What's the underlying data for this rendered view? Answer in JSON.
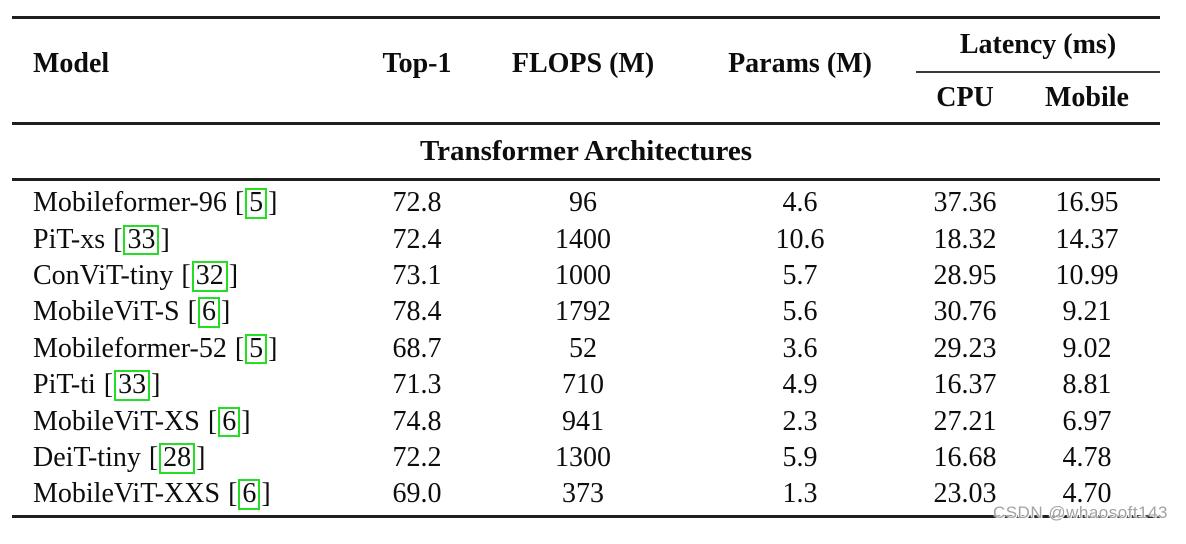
{
  "page": {
    "background": "#ffffff",
    "watermark": "CSDN @whaosoft143",
    "watermark_color": "#a3a3a3"
  },
  "table": {
    "headers": {
      "model": "Model",
      "top1": "Top-1",
      "flops": "FLOPS (M)",
      "params": "Params (M)",
      "latency_group": "Latency (ms)",
      "cpu": "CPU",
      "mobile": "Mobile"
    },
    "section_title": "Transformer Architectures",
    "bracket_open": "[",
    "bracket_close": "]",
    "cite_box_color": "#24dd24",
    "rows": [
      {
        "model": "Mobileformer-96",
        "cite": "5",
        "top1": "72.8",
        "flops": "96",
        "params": "4.6",
        "cpu": "37.36",
        "mobile": "16.95"
      },
      {
        "model": "PiT-xs",
        "cite": "33",
        "top1": "72.4",
        "flops": "1400",
        "params": "10.6",
        "cpu": "18.32",
        "mobile": "14.37"
      },
      {
        "model": "ConViT-tiny",
        "cite": "32",
        "top1": "73.1",
        "flops": "1000",
        "params": "5.7",
        "cpu": "28.95",
        "mobile": "10.99"
      },
      {
        "model": "MobileViT-S",
        "cite": "6",
        "top1": "78.4",
        "flops": "1792",
        "params": "5.6",
        "cpu": "30.76",
        "mobile": "9.21"
      },
      {
        "model": "Mobileformer-52",
        "cite": "5",
        "top1": "68.7",
        "flops": "52",
        "params": "3.6",
        "cpu": "29.23",
        "mobile": "9.02"
      },
      {
        "model": "PiT-ti",
        "cite": "33",
        "top1": "71.3",
        "flops": "710",
        "params": "4.9",
        "cpu": "16.37",
        "mobile": "8.81"
      },
      {
        "model": "MobileViT-XS",
        "cite": "6",
        "top1": "74.8",
        "flops": "941",
        "params": "2.3",
        "cpu": "27.21",
        "mobile": "6.97"
      },
      {
        "model": "DeiT-tiny",
        "cite": "28",
        "top1": "72.2",
        "flops": "1300",
        "params": "5.9",
        "cpu": "16.68",
        "mobile": "4.78"
      },
      {
        "model": "MobileViT-XXS",
        "cite": "6",
        "top1": "69.0",
        "flops": "373",
        "params": "1.3",
        "cpu": "23.03",
        "mobile": "4.70"
      }
    ]
  }
}
